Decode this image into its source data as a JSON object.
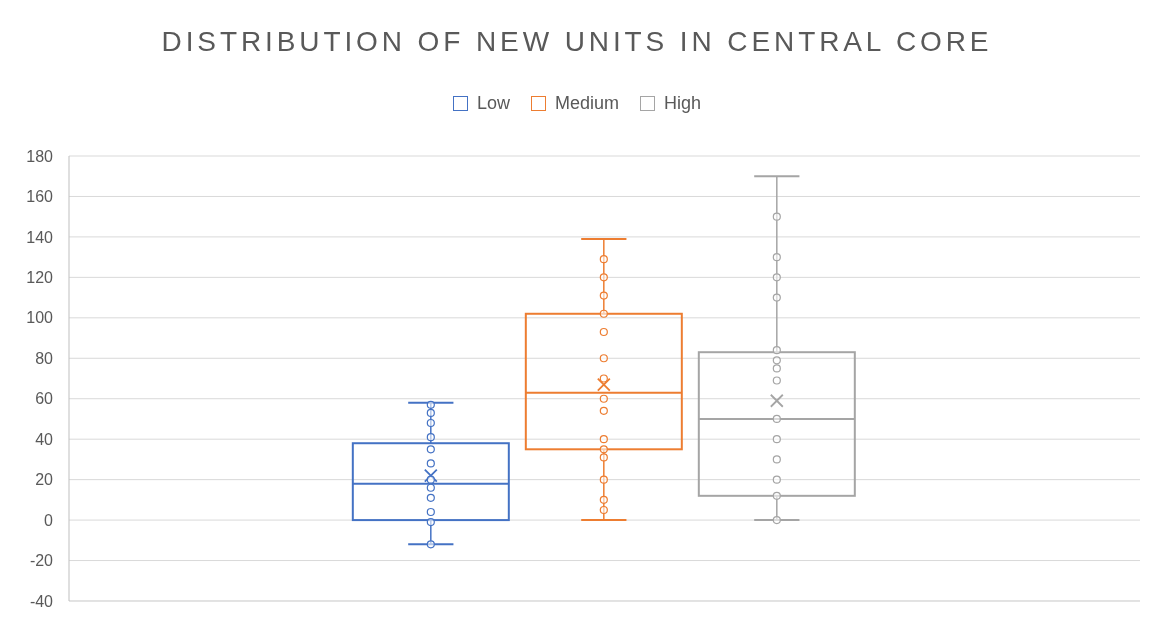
{
  "chart_data": {
    "type": "box",
    "title": "DISTRIBUTION OF NEW UNITS IN CENTRAL CORE",
    "categories": [
      null
    ],
    "series": [
      {
        "name": "Low",
        "color": "#4472c4",
        "boxes": [
          {
            "low": -12,
            "q1": 0,
            "median": 18,
            "q3": 38,
            "high": 58,
            "mean": 22,
            "outliers": [
              57,
              53,
              48,
              41,
              35,
              28,
              20,
              16,
              11,
              4,
              -1,
              -12
            ]
          }
        ]
      },
      {
        "name": "Medium",
        "color": "#ed7d31",
        "boxes": [
          {
            "low": 0,
            "q1": 35,
            "median": 63,
            "q3": 102,
            "high": 139,
            "mean": 67,
            "outliers": [
              129,
              120,
              111,
              102,
              93,
              80,
              70,
              60,
              54,
              40,
              35,
              31,
              20,
              10,
              5
            ]
          }
        ]
      },
      {
        "name": "High",
        "color": "#a5a5a5",
        "boxes": [
          {
            "low": 0,
            "q1": 12,
            "median": 50,
            "q3": 83,
            "high": 170,
            "mean": 59,
            "outliers": [
              150,
              130,
              120,
              110,
              84,
              79,
              75,
              69,
              50,
              40,
              30,
              20,
              12,
              0
            ]
          }
        ]
      }
    ],
    "ylim": [
      -40,
      180
    ],
    "yticks": [
      -40,
      -20,
      0,
      20,
      40,
      60,
      80,
      100,
      120,
      140,
      160,
      180
    ],
    "grid": "y",
    "legend": "top",
    "marker": "circle"
  }
}
